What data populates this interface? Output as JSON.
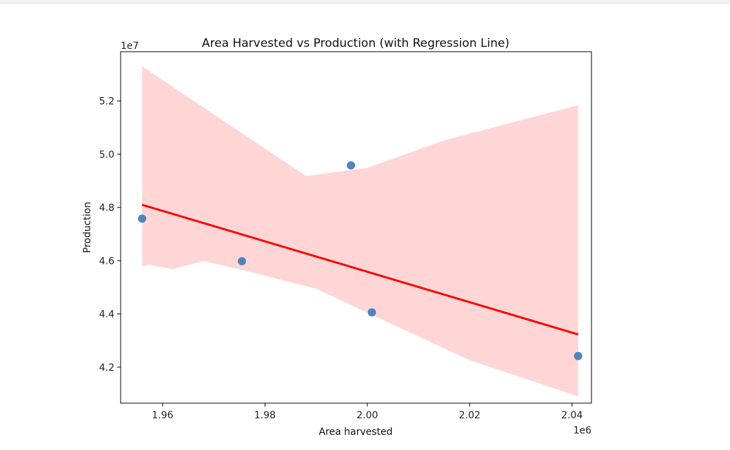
{
  "chart_data": {
    "type": "scatter",
    "title": "Area Harvested vs Production (with Regression Line)",
    "xlabel": "Area harvested",
    "ylabel": "Production",
    "x_offset_label": "1e6",
    "y_offset_label": "1e7",
    "xlim": [
      1951800,
      2043800
    ],
    "ylim": [
      40650000,
      53850000
    ],
    "x_ticks": [
      1960000,
      1980000,
      2000000,
      2020000,
      2040000
    ],
    "x_tick_labels": [
      "1.96",
      "1.98",
      "2.00",
      "2.02",
      "2.04"
    ],
    "y_ticks": [
      42000000,
      44000000,
      46000000,
      48000000,
      50000000,
      52000000
    ],
    "y_tick_labels": [
      "4.2",
      "4.4",
      "4.6",
      "4.8",
      "5.0",
      "5.2"
    ],
    "grid": false,
    "points": [
      {
        "x": 1956000,
        "y": 47580000
      },
      {
        "x": 1975500,
        "y": 45980000
      },
      {
        "x": 1996800,
        "y": 49580000
      },
      {
        "x": 2000900,
        "y": 44060000
      },
      {
        "x": 2041200,
        "y": 42420000
      }
    ],
    "regression_line": {
      "x": [
        1956000,
        2041200
      ],
      "y": [
        48100000,
        43230000
      ]
    },
    "confidence_band": {
      "upper": [
        [
          1956000,
          53300000
        ],
        [
          1988000,
          49180000
        ],
        [
          2000000,
          49480000
        ],
        [
          2015000,
          50520000
        ],
        [
          2041200,
          51840000
        ]
      ],
      "lower": [
        [
          1956000,
          45780000
        ],
        [
          1957500,
          45850000
        ],
        [
          1962000,
          45680000
        ],
        [
          1968000,
          45990000
        ],
        [
          1975000,
          45680000
        ],
        [
          1990000,
          44950000
        ],
        [
          2000000,
          44050000
        ],
        [
          2020000,
          42260000
        ],
        [
          2041200,
          40900000
        ]
      ]
    },
    "colors": {
      "points": "#3b7bb8",
      "line": "#ff0000",
      "band": "#ffd6d6"
    }
  }
}
